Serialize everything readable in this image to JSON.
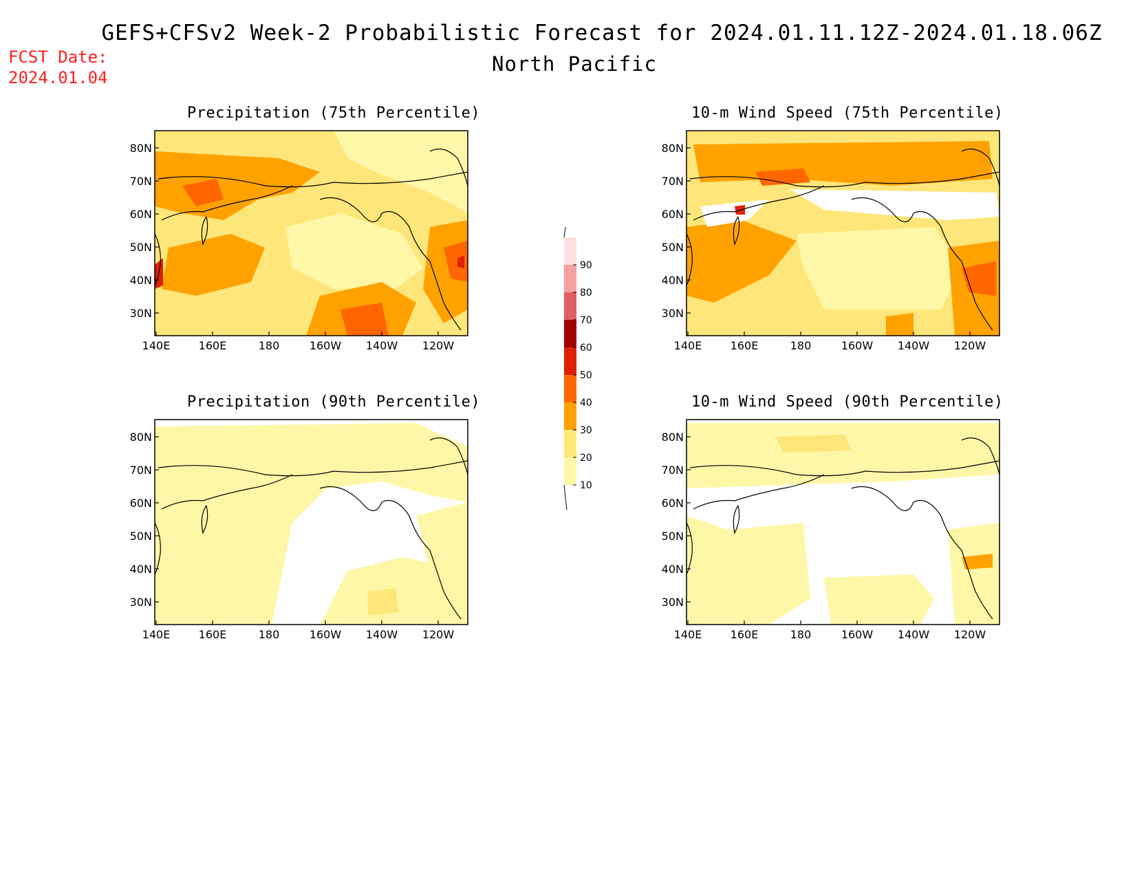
{
  "header": {
    "title": "GEFS+CFSv2 Week-2 Probabilistic Forecast for 2024.01.11.12Z-2024.01.18.06Z",
    "region": "North Pacific",
    "fcst_label": "FCST Date:",
    "fcst_date": "2024.01.04"
  },
  "axes": {
    "lon_ticks": [
      "140E",
      "160E",
      "180",
      "160W",
      "140W",
      "120W"
    ],
    "lat_ticks": [
      "80N",
      "70N",
      "60N",
      "50N",
      "40N",
      "30N"
    ]
  },
  "panels": [
    {
      "id": "precip75",
      "title": "Precipitation (75th Percentile)"
    },
    {
      "id": "wind75",
      "title": "10-m Wind Speed (75th Percentile)"
    },
    {
      "id": "precip90",
      "title": "Precipitation (90th Percentile)"
    },
    {
      "id": "wind90",
      "title": "10-m Wind Speed (90th Percentile)"
    }
  ],
  "colorbar": {
    "levels": [
      "10",
      "20",
      "30",
      "40",
      "50",
      "60",
      "70",
      "80",
      "90"
    ],
    "colors": [
      "#fff7a8",
      "#ffe67a",
      "#ffa200",
      "#ff6600",
      "#e02000",
      "#a00000",
      "#e06060",
      "#f5a0a0",
      "#ffe0e0"
    ]
  }
}
